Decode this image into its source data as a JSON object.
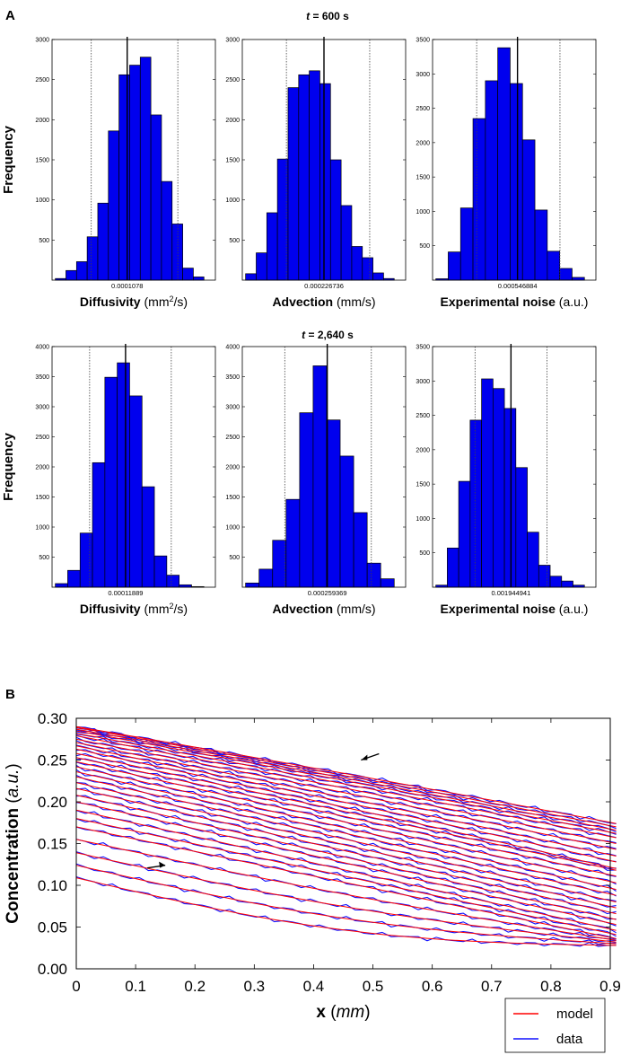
{
  "panel_a": {
    "label": "A",
    "rows": [
      {
        "time_var": "t",
        "time_rest": " = 600 s"
      },
      {
        "time_var": "t",
        "time_rest": " = 2,640 s"
      }
    ],
    "ylabel": "Frequency",
    "xlabels": [
      {
        "bold": "Diffusivity",
        "normal": " (mm",
        "sup": "2",
        "tail": "/s)"
      },
      {
        "bold": "Advection",
        "normal": " (mm/s)",
        "sup": "",
        "tail": ""
      },
      {
        "bold": "Experimental noise",
        "normal": " (a.u.)",
        "sup": "",
        "tail": ""
      }
    ]
  },
  "panel_b": {
    "label": "B",
    "legend": {
      "model": "model",
      "data": "data"
    }
  },
  "colors": {
    "bar": "#0000ee",
    "model": "#ff0000",
    "data": "#1010ff",
    "axis": "#000000"
  },
  "chart_data": [
    {
      "type": "bar",
      "panel": "A",
      "row": 0,
      "col": 0,
      "title": "Diffusivity histogram, t = 600 s",
      "ylim": [
        0,
        3000
      ],
      "yticks": [
        500,
        1000,
        1500,
        2000,
        2500,
        3000
      ],
      "values": [
        20,
        120,
        230,
        540,
        960,
        1860,
        2560,
        2680,
        2780,
        2060,
        1230,
        700,
        150,
        40
      ],
      "mean_fraction": 0.46,
      "ci_fractions": [
        0.24,
        0.77
      ],
      "mean_label": "0.0001078"
    },
    {
      "type": "bar",
      "panel": "A",
      "row": 0,
      "col": 1,
      "title": "Advection histogram, t = 600 s",
      "ylim": [
        0,
        3000
      ],
      "yticks": [
        500,
        1000,
        1500,
        2000,
        2500,
        3000
      ],
      "values": [
        80,
        340,
        840,
        1510,
        2400,
        2560,
        2610,
        2450,
        1500,
        930,
        420,
        280,
        90,
        20
      ],
      "mean_fraction": 0.5,
      "ci_fractions": [
        0.27,
        0.78
      ],
      "mean_label": "0.000226736"
    },
    {
      "type": "bar",
      "panel": "A",
      "row": 0,
      "col": 2,
      "title": "Experimental noise histogram, t = 600 s",
      "ylim": [
        0,
        3500
      ],
      "yticks": [
        500,
        1000,
        1500,
        2000,
        2500,
        3000,
        3500
      ],
      "values": [
        20,
        410,
        1050,
        2350,
        2900,
        3380,
        2860,
        2040,
        1020,
        420,
        170,
        40
      ],
      "mean_fraction": 0.52,
      "ci_fractions": [
        0.27,
        0.78
      ],
      "mean_label": "0.000546884"
    },
    {
      "type": "bar",
      "panel": "A",
      "row": 1,
      "col": 0,
      "title": "Diffusivity histogram, t = 2,640 s",
      "ylim": [
        0,
        4000
      ],
      "yticks": [
        500,
        1000,
        1500,
        2000,
        2500,
        3000,
        3500,
        4000
      ],
      "values": [
        60,
        280,
        900,
        2070,
        3490,
        3730,
        3180,
        1670,
        520,
        200,
        40,
        10
      ],
      "mean_fraction": 0.45,
      "ci_fractions": [
        0.23,
        0.73
      ],
      "mean_label": "0.00011889"
    },
    {
      "type": "bar",
      "panel": "A",
      "row": 1,
      "col": 1,
      "title": "Advection histogram, t = 2,640 s",
      "ylim": [
        0,
        4000
      ],
      "yticks": [
        500,
        1000,
        1500,
        2000,
        2500,
        3000,
        3500,
        4000
      ],
      "values": [
        70,
        300,
        780,
        1460,
        2900,
        3680,
        2780,
        2180,
        1240,
        400,
        140
      ],
      "mean_fraction": 0.52,
      "ci_fractions": [
        0.26,
        0.79
      ],
      "mean_label": "0.000259369"
    },
    {
      "type": "bar",
      "panel": "A",
      "row": 1,
      "col": 2,
      "title": "Experimental noise histogram, t = 2,640 s",
      "ylim": [
        0,
        3500
      ],
      "yticks": [
        500,
        1000,
        1500,
        2000,
        2500,
        3000,
        3500
      ],
      "values": [
        30,
        570,
        1540,
        2430,
        3030,
        2890,
        2600,
        1740,
        800,
        320,
        160,
        90,
        30
      ],
      "mean_fraction": 0.48,
      "ci_fractions": [
        0.26,
        0.7
      ],
      "mean_label": "0.001944941"
    },
    {
      "type": "line",
      "panel": "B",
      "title": "Concentration profiles: model vs data",
      "xlabel_bold": "x",
      "xlabel_open": " (",
      "xlabel_unit": "mm",
      "xlabel_close": ")",
      "ylabel_bold": "Concentration",
      "ylabel_open": " (",
      "ylabel_unit": "a.u.",
      "ylabel_close": ")",
      "xlim": [
        0,
        0.9
      ],
      "ylim": [
        0,
        0.3
      ],
      "xticks": [
        0.0,
        0.1,
        0.2,
        0.3,
        0.4,
        0.5,
        0.6,
        0.7,
        0.8,
        0.9
      ],
      "xtick_labels": [
        "0",
        "0.1",
        "0.2",
        "0.3",
        "0.4",
        "0.5",
        "0.6",
        "0.7",
        "0.8",
        "0.9"
      ],
      "yticks": [
        0.0,
        0.05,
        0.1,
        0.15,
        0.2,
        0.25,
        0.3
      ],
      "ytick_labels": [
        "0.00",
        "0.05",
        "0.10",
        "0.15",
        "0.20",
        "0.25",
        "0.30"
      ],
      "curves_start": [
        0.109,
        0.124,
        0.139,
        0.155,
        0.17,
        0.18,
        0.19,
        0.2,
        0.208,
        0.216,
        0.223,
        0.23,
        0.236,
        0.242,
        0.248,
        0.253,
        0.258,
        0.263,
        0.267,
        0.271,
        0.275,
        0.279,
        0.282,
        0.285,
        0.287,
        0.289,
        0.29
      ],
      "curves_end": [
        0.028,
        0.03,
        0.032,
        0.034,
        0.036,
        0.041,
        0.046,
        0.053,
        0.059,
        0.066,
        0.073,
        0.08,
        0.088,
        0.095,
        0.103,
        0.111,
        0.118,
        0.126,
        0.134,
        0.141,
        0.149,
        0.156,
        0.163,
        0.168,
        0.172,
        0.176,
        0.18
      ],
      "arrows": [
        {
          "x": 0.48,
          "y": 0.25,
          "direction": "left"
        },
        {
          "x": 0.15,
          "y": 0.124,
          "direction": "right"
        }
      ],
      "series": [
        {
          "name": "model"
        },
        {
          "name": "data"
        }
      ]
    }
  ]
}
